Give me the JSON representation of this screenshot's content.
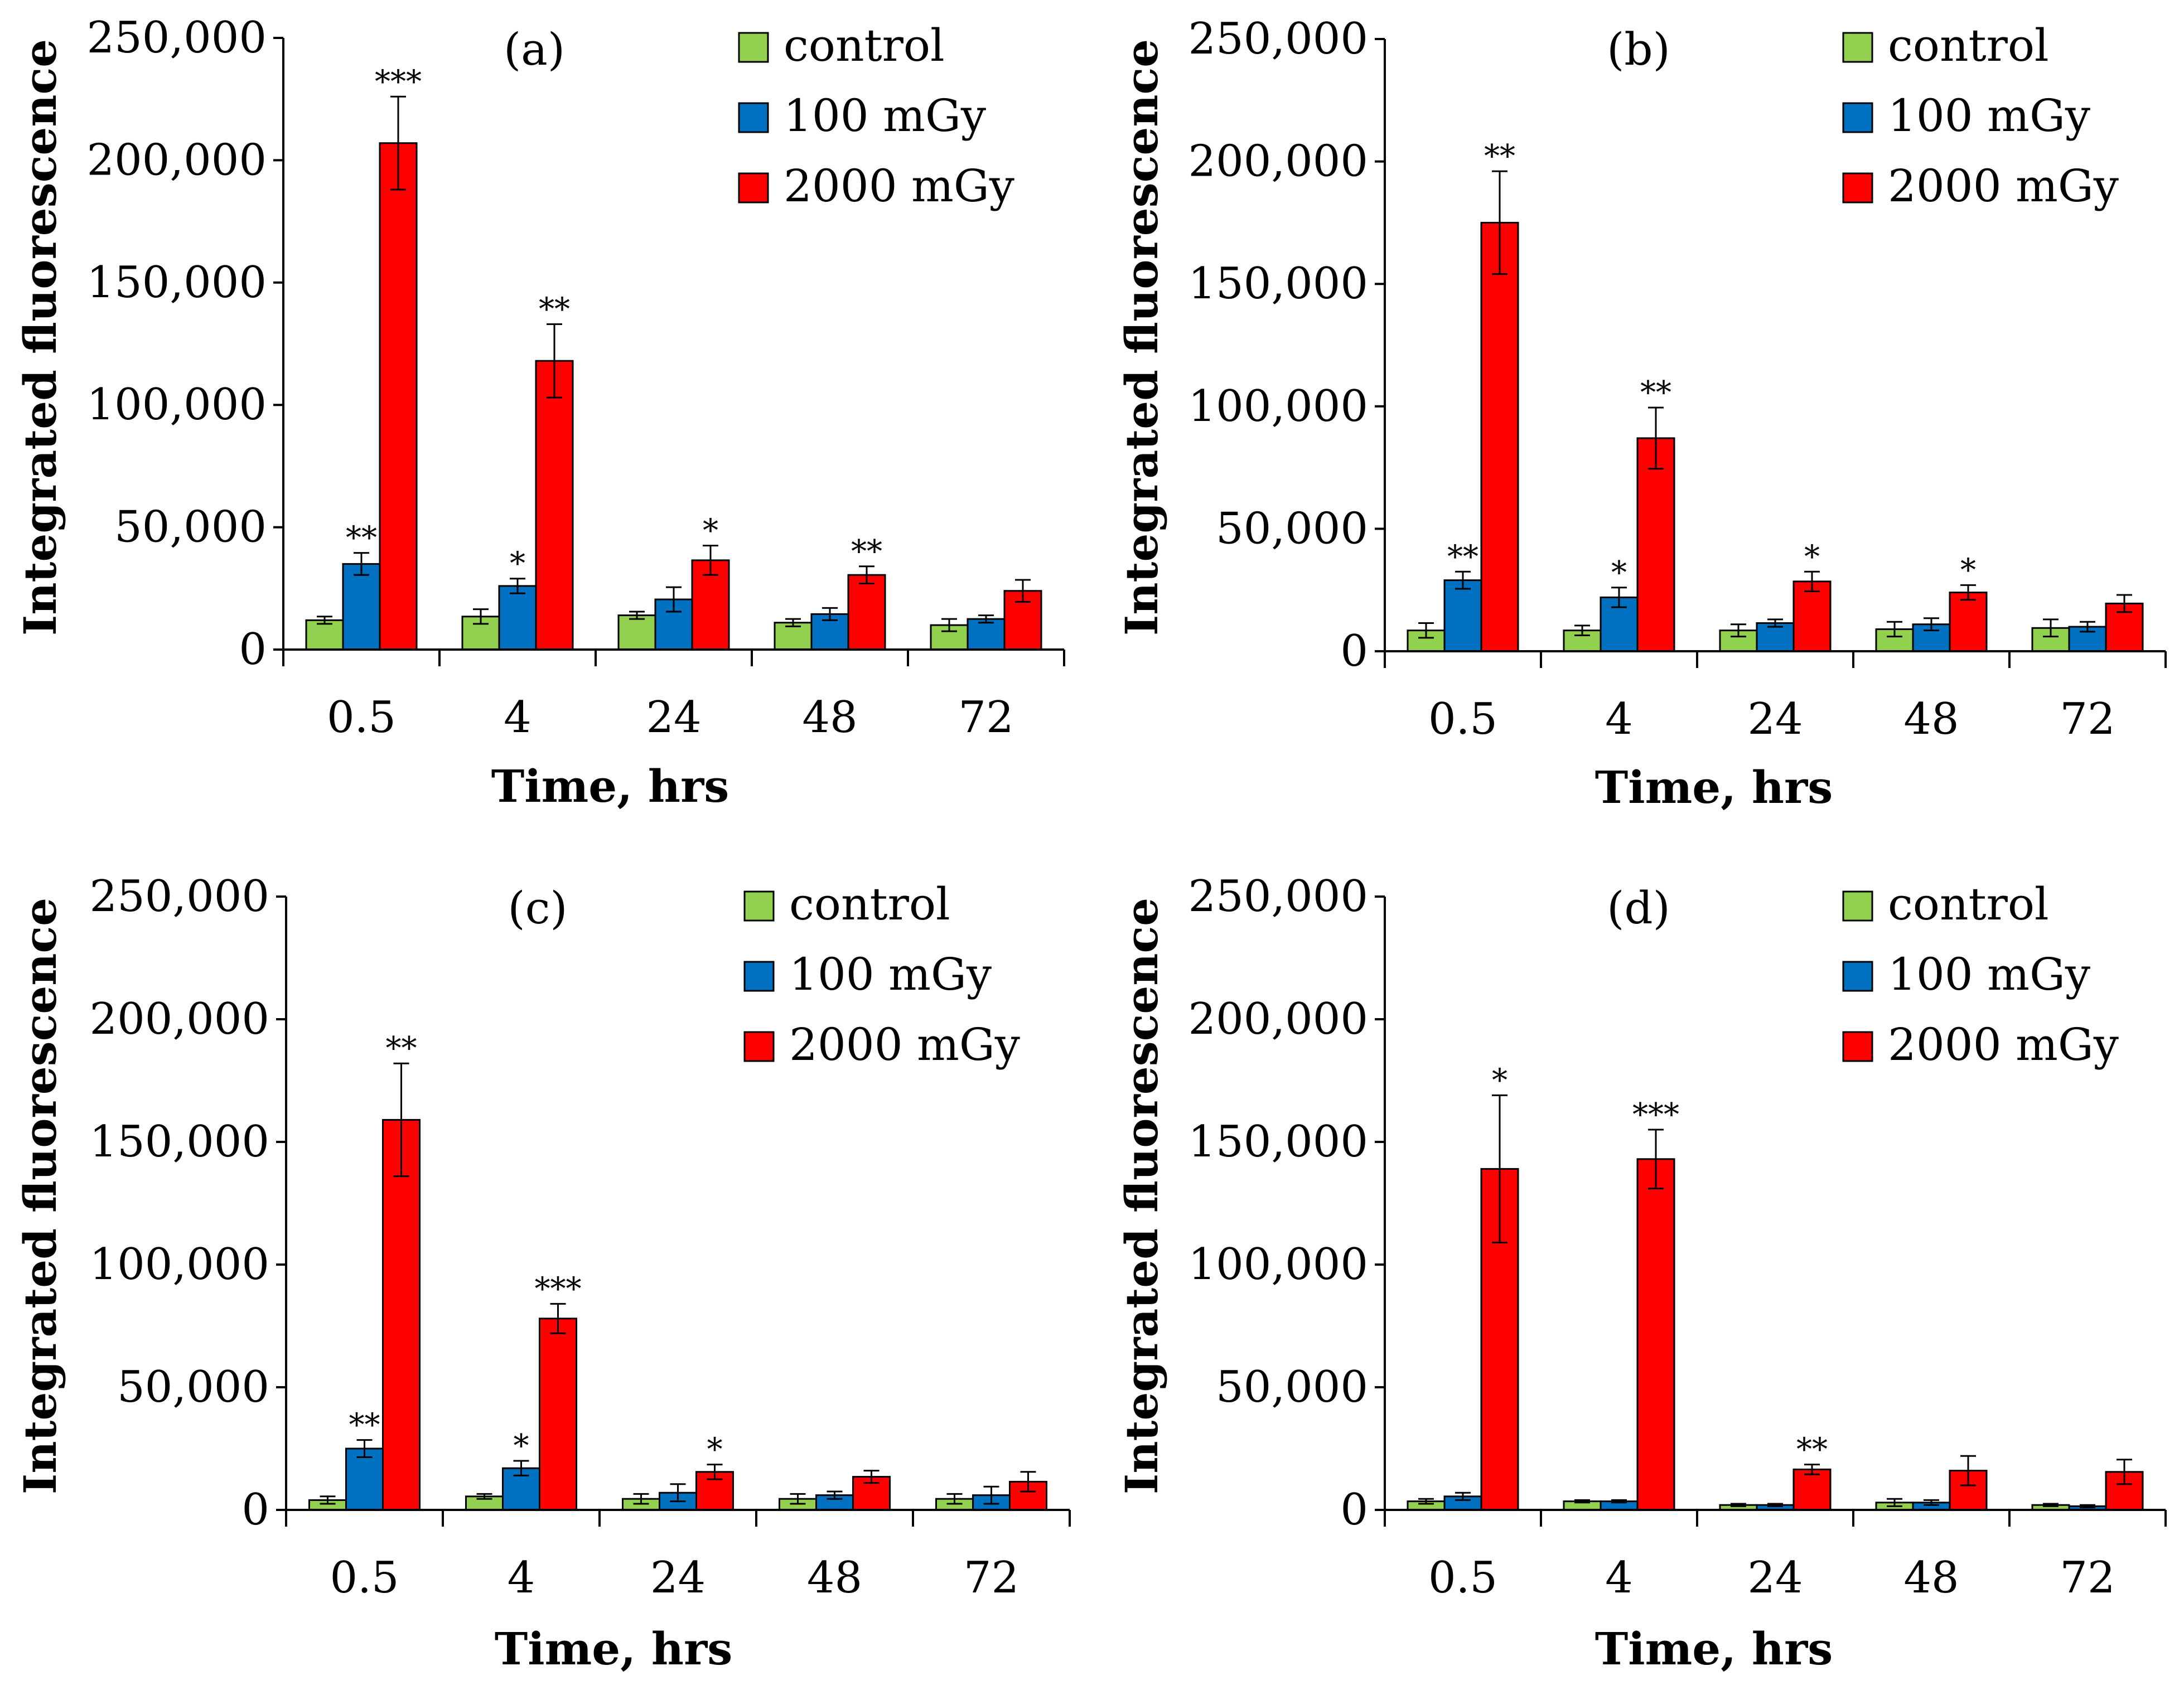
{
  "figure": {
    "legend_colors": {
      "control": "#92d050",
      "100 mGy": "#0070c0",
      "2000 mGy": "#ff0000"
    }
  },
  "chart_data": [
    {
      "type": "bar",
      "panel": "(a)",
      "categories": [
        "0.5",
        "4",
        "24",
        "48",
        "72"
      ],
      "xlabel": "Time, hrs",
      "ylabel": "Integrated fluorescence",
      "ylim": [
        0,
        250000
      ],
      "yticks": [
        "0",
        "50,000",
        "100,000",
        "150,000",
        "200,000",
        "250,000"
      ],
      "legend": [
        "control",
        "100 mGy",
        "2000 mGy"
      ],
      "series": [
        {
          "name": "control",
          "color": "#92d050",
          "values": [
            12000,
            13500,
            14000,
            11000,
            10000
          ],
          "errors": [
            1500,
            3000,
            1500,
            1500,
            2500
          ],
          "sig": [
            "",
            "",
            "",
            "",
            ""
          ]
        },
        {
          "name": "100 mGy",
          "color": "#0070c0",
          "values": [
            35000,
            26000,
            20500,
            14500,
            12500
          ],
          "errors": [
            4500,
            3000,
            5000,
            2500,
            1500
          ],
          "sig": [
            "**",
            "*",
            "",
            "",
            ""
          ]
        },
        {
          "name": "2000 mGy",
          "color": "#ff0000",
          "values": [
            207000,
            118000,
            36500,
            30500,
            24000
          ],
          "errors": [
            19000,
            15000,
            6000,
            3500,
            4500
          ],
          "sig": [
            "***",
            "**",
            "*",
            "**",
            ""
          ]
        }
      ]
    },
    {
      "type": "bar",
      "panel": "(b)",
      "categories": [
        "0.5",
        "4",
        "24",
        "48",
        "72"
      ],
      "xlabel": "Time, hrs",
      "ylabel": "Integrated fluorescence",
      "ylim": [
        0,
        250000
      ],
      "yticks": [
        "0",
        "50,000",
        "100,000",
        "150,000",
        "200,000",
        "250,000"
      ],
      "legend": [
        "control",
        "100 mGy",
        "2000 mGy"
      ],
      "series": [
        {
          "name": "control",
          "color": "#92d050",
          "values": [
            8500,
            8500,
            8500,
            9000,
            9500
          ],
          "errors": [
            3000,
            2000,
            2500,
            3000,
            3500
          ],
          "sig": [
            "",
            "",
            "",
            "",
            ""
          ]
        },
        {
          "name": "100 mGy",
          "color": "#0070c0",
          "values": [
            29000,
            22000,
            11500,
            11000,
            10000
          ],
          "errors": [
            3500,
            4000,
            1500,
            2500,
            2000
          ],
          "sig": [
            "**",
            "*",
            "",
            "",
            ""
          ]
        },
        {
          "name": "2000 mGy",
          "color": "#ff0000",
          "values": [
            175000,
            87000,
            28500,
            24000,
            19500
          ],
          "errors": [
            21000,
            12500,
            4000,
            3000,
            3500
          ],
          "sig": [
            "**",
            "**",
            "*",
            "*",
            ""
          ]
        }
      ]
    },
    {
      "type": "bar",
      "panel": "(c)",
      "categories": [
        "0.5",
        "4",
        "24",
        "48",
        "72"
      ],
      "xlabel": "Time, hrs",
      "ylabel": "Integrated fluorescence",
      "ylim": [
        0,
        250000
      ],
      "yticks": [
        "0",
        "50,000",
        "100,000",
        "150,000",
        "200,000",
        "250,000"
      ],
      "legend": [
        "control",
        "100 mGy",
        "2000 mGy"
      ],
      "series": [
        {
          "name": "control",
          "color": "#92d050",
          "values": [
            4000,
            5500,
            4500,
            4500,
            4500
          ],
          "errors": [
            1500,
            1000,
            2000,
            2000,
            2000
          ],
          "sig": [
            "",
            "",
            "",
            "",
            ""
          ]
        },
        {
          "name": "100 mGy",
          "color": "#0070c0",
          "values": [
            25000,
            17000,
            7000,
            6000,
            6000
          ],
          "errors": [
            3500,
            3000,
            3500,
            1500,
            3500
          ],
          "sig": [
            "**",
            "*",
            "",
            "",
            ""
          ]
        },
        {
          "name": "2000 mGy",
          "color": "#ff0000",
          "values": [
            159000,
            78000,
            15500,
            13500,
            11500
          ],
          "errors": [
            23000,
            6000,
            3000,
            2500,
            4000
          ],
          "sig": [
            "**",
            "***",
            "*",
            "",
            ""
          ]
        }
      ]
    },
    {
      "type": "bar",
      "panel": "(d)",
      "categories": [
        "0.5",
        "4",
        "24",
        "48",
        "72"
      ],
      "xlabel": "Time, hrs",
      "ylabel": "Integrated fluorescence",
      "ylim": [
        0,
        250000
      ],
      "yticks": [
        "0",
        "50,000",
        "100,000",
        "150,000",
        "200,000",
        "250,000"
      ],
      "legend": [
        "control",
        "100 mGy",
        "2000 mGy"
      ],
      "series": [
        {
          "name": "control",
          "color": "#92d050",
          "values": [
            3500,
            3500,
            2000,
            3000,
            2000
          ],
          "errors": [
            1000,
            500,
            500,
            1500,
            500
          ],
          "sig": [
            "",
            "",
            "",
            "",
            ""
          ]
        },
        {
          "name": "100 mGy",
          "color": "#0070c0",
          "values": [
            5500,
            3500,
            2000,
            3000,
            1500
          ],
          "errors": [
            1500,
            500,
            500,
            1000,
            500
          ],
          "sig": [
            "",
            "",
            "",
            "",
            ""
          ]
        },
        {
          "name": "2000 mGy",
          "color": "#ff0000",
          "values": [
            139000,
            143000,
            16500,
            16000,
            15500
          ],
          "errors": [
            30000,
            12000,
            2000,
            6000,
            5000
          ],
          "sig": [
            "*",
            "***",
            "**",
            "",
            ""
          ]
        }
      ]
    }
  ]
}
